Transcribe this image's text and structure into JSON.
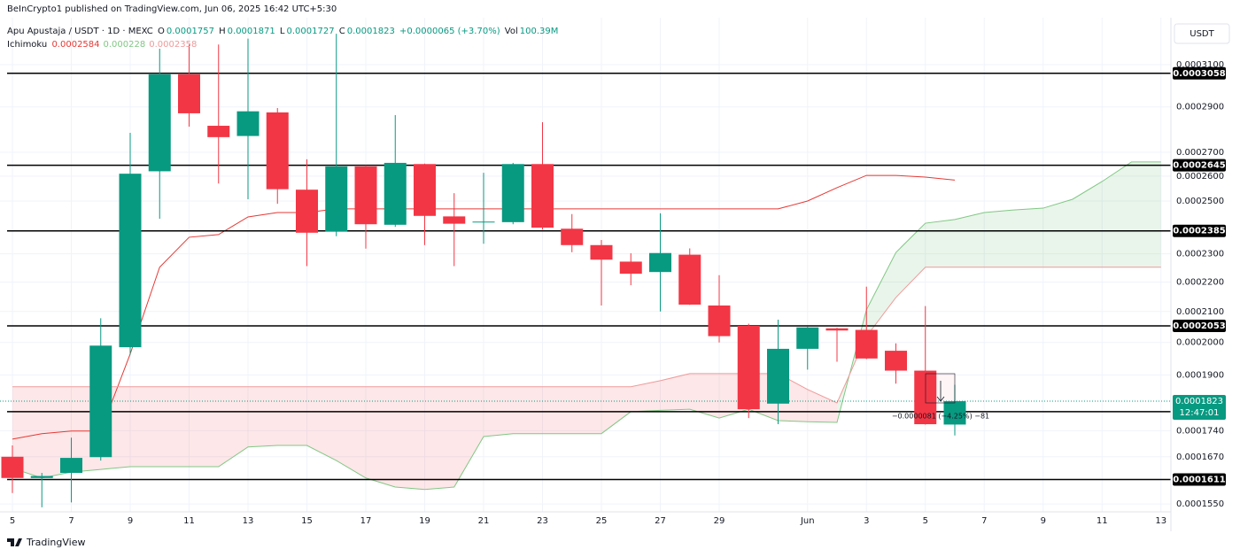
{
  "chart_data": {
    "type": "candlestick",
    "published": "BeInCrypto1 published on TradingView.com, Jun 06, 2025 16:42 UTC+5:30",
    "title": "Apu Apustaja / USDT · 1D · MEXC",
    "ohlc_header": [
      {
        "key": "O",
        "value": 0.0001757
      },
      {
        "key": "H",
        "value": 0.0001871
      },
      {
        "key": "L",
        "value": 0.0001727
      },
      {
        "key": "C",
        "value": 0.0001823
      }
    ],
    "change": "+0.0000065 (+3.70%)",
    "volume_key": "Vol",
    "volume": "100.39M",
    "indicator": "Ichimoku",
    "currency": "USDT",
    "brand": "TradingView",
    "countdown": "12:47:01",
    "last_price": 0.0001823,
    "measure_label": "−0.0000081 (−4.25%) −81",
    "log_y": true,
    "grid": true,
    "up_color": "#089981",
    "down_color": "#f23645",
    "level_color": "#000000",
    "ylim": [
      0.0001531,
      0.0003315
    ],
    "yticks": [
      {
        "value": 0.00031,
        "label": "0.0003100"
      },
      {
        "value": 0.00029,
        "label": "0.0002900"
      },
      {
        "value": 0.00027,
        "label": "0.0002700"
      },
      {
        "value": 0.00026,
        "label": "0.0002600"
      },
      {
        "value": 0.00025,
        "label": "0.0002500"
      },
      {
        "value": 0.00023,
        "label": "0.0002300"
      },
      {
        "value": 0.00022,
        "label": "0.0002200"
      },
      {
        "value": 0.00021,
        "label": "0.0002100"
      },
      {
        "value": 0.0002,
        "label": "0.0002000"
      },
      {
        "value": 0.00019,
        "label": "0.0001900"
      },
      {
        "value": 0.000174,
        "label": "0.0001740"
      },
      {
        "value": 0.000167,
        "label": "0.0001670"
      },
      {
        "value": 0.000155,
        "label": "0.0001550"
      }
    ],
    "levels": [
      0.0003058,
      0.0002645,
      0.0002385,
      0.0002053,
      0.0001793,
      0.0001611
    ],
    "categories": [
      "5",
      null,
      "7",
      null,
      "9",
      null,
      "11",
      null,
      "13",
      null,
      "15",
      null,
      "17",
      null,
      "19",
      null,
      "21",
      null,
      "23",
      null,
      "25",
      null,
      "27",
      null,
      "29",
      null,
      null,
      "Jun",
      null,
      "3",
      null,
      "5",
      null,
      "7",
      null,
      "9",
      null,
      "11",
      null,
      "13"
    ],
    "open": [
      0.000167,
      0.0001615,
      0.0001628,
      0.0001669,
      0.0001985,
      0.000262,
      0.0003053,
      0.0002815,
      0.000277,
      0.0002875,
      0.0002545,
      0.0002383,
      0.000264,
      0.0002408,
      0.000265,
      0.000244,
      0.0002418,
      0.0002418,
      0.000265,
      0.0002393,
      0.0002332,
      0.0002272,
      0.0002235,
      0.0002297,
      0.000212,
      0.0002053,
      0.0001816,
      0.000198,
      0.0002045,
      0.000204,
      0.0001974,
      0.0001913,
      0.0001757,
      null,
      null,
      null,
      null,
      null,
      null,
      null
    ],
    "high": [
      0.00017,
      0.0001628,
      0.0001721,
      0.0002078,
      0.0002784,
      0.0003179,
      0.00032,
      0.00032,
      0.000323,
      0.0002895,
      0.000267,
      0.0003255,
      0.0002645,
      0.0002863,
      0.0002652,
      0.0002531,
      0.0002614,
      0.0002655,
      0.0002831,
      0.0002449,
      0.0002351,
      0.0002302,
      0.0002452,
      0.000232,
      0.0002224,
      0.000206,
      0.0002073,
      0.000205,
      0.0002047,
      0.0002184,
      0.0001997,
      0.0002118,
      0.0001871,
      null,
      null,
      null,
      null,
      null,
      null,
      null
    ],
    "low": [
      0.0001577,
      0.0001542,
      0.0001554,
      0.000166,
      0.0001962,
      0.0002431,
      0.0002811,
      0.000257,
      0.0002507,
      0.0002489,
      0.0002256,
      0.0002365,
      0.0002319,
      0.00024,
      0.0002332,
      0.0002256,
      0.0002337,
      0.000241,
      0.000239,
      0.0002306,
      0.000212,
      0.0002189,
      0.00021,
      0.0002122,
      0.0002,
      0.0001775,
      0.0001758,
      0.0001916,
      0.000194,
      0.0001948,
      0.0001874,
      0.0001757,
      0.0001727,
      null,
      null,
      null,
      null,
      null,
      null,
      null
    ],
    "close": [
      0.0001615,
      0.000162,
      0.0001667,
      0.000199,
      0.000261,
      0.0003053,
      0.0002871,
      0.0002765,
      0.000288,
      0.0002547,
      0.0002378,
      0.000264,
      0.000241,
      0.0002655,
      0.0002442,
      0.0002412,
      0.000242,
      0.000265,
      0.0002397,
      0.0002332,
      0.0002279,
      0.0002229,
      0.0002303,
      0.0002123,
      0.000202,
      0.00018,
      0.000198,
      0.0002048,
      0.0002038,
      0.000195,
      0.0001913,
      0.0001758,
      0.0001823,
      null,
      null,
      null,
      null,
      null,
      null,
      null
    ],
    "series": [
      {
        "color": "#e53935",
        "legend_value": 0.0002584,
        "values": [
          0.0001717,
          0.0001732,
          0.0001739,
          0.0001739,
          0.0001964,
          0.0002252,
          0.0002361,
          0.0002371,
          0.0002438,
          0.0002455,
          0.0002455,
          0.0002469,
          0.0002469,
          0.0002469,
          0.0002469,
          0.0002469,
          0.0002469,
          0.0002469,
          0.0002469,
          0.0002469,
          0.0002469,
          0.0002469,
          0.0002469,
          0.0002469,
          0.0002469,
          0.0002469,
          0.0002469,
          0.00025,
          0.0002553,
          0.0002603,
          0.0002603,
          0.0002596,
          0.0002584,
          null,
          null,
          null,
          null,
          null,
          null,
          null
        ]
      },
      {
        "color": "#81c784",
        "legend_value": 0.000228,
        "fill": "rgba(76,175,80,0.12)",
        "values": [
          0.000164,
          0.0001615,
          0.000163,
          0.0001637,
          0.0001644,
          0.0001644,
          0.0001644,
          0.0001644,
          0.0001696,
          0.00017,
          0.00017,
          0.000166,
          0.0001615,
          0.0001592,
          0.0001586,
          0.0001592,
          0.0001724,
          0.0001732,
          0.0001732,
          0.0001732,
          0.0001732,
          0.0001793,
          0.0001797,
          0.00018,
          0.0001775,
          0.00018,
          0.0001768,
          0.0001765,
          0.0001763,
          0.0002106,
          0.0002305,
          0.0002414,
          0.0002428,
          0.0002455,
          0.0002465,
          0.0002472,
          0.0002507,
          0.0002578,
          0.0002659,
          0.0002659
        ]
      },
      {
        "color": "#ef9a9a",
        "legend_value": 0.0002358,
        "fill": "rgba(242,54,69,0.12)",
        "values": [
          0.0001865,
          0.0001865,
          0.0001865,
          0.0001865,
          0.0001865,
          0.0001865,
          0.0001865,
          0.0001865,
          0.0001865,
          0.0001865,
          0.0001865,
          0.0001865,
          0.0001865,
          0.0001865,
          0.0001865,
          0.0001865,
          0.0001865,
          0.0001865,
          0.0001865,
          0.0001865,
          0.0001865,
          0.0001865,
          0.0001883,
          0.0001904,
          0.0001904,
          0.0001904,
          0.0001904,
          0.0001857,
          0.0001818,
          0.0002019,
          0.0002147,
          0.0002252,
          0.0002252,
          0.0002252,
          0.0002252,
          0.0002252,
          0.0002252,
          0.0002252,
          0.0002252,
          0.0002252
        ]
      }
    ]
  }
}
